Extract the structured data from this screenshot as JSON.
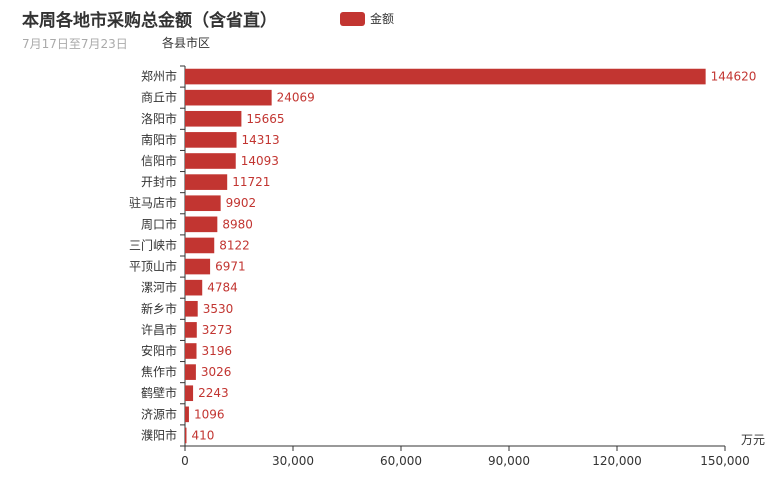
{
  "title": "本周各地市采购总金额（含省直）",
  "subtitle": "7月17日至7月23日",
  "legend": {
    "label": "金额",
    "color": "#c23531"
  },
  "chart_data": {
    "type": "bar",
    "orientation": "horizontal",
    "title": "本周各地市采购总金额（含省直）",
    "subtitle": "7月17日至7月23日",
    "ylabel": "各县市区",
    "xlabel": "万元",
    "xlim": [
      0,
      150000
    ],
    "xticks": [
      "0",
      "30,000",
      "60,000",
      "90,000",
      "120,000",
      "150,000"
    ],
    "categories": [
      "郑州市",
      "商丘市",
      "洛阳市",
      "南阳市",
      "信阳市",
      "开封市",
      "驻马店市",
      "周口市",
      "三门峡市",
      "平顶山市",
      "漯河市",
      "新乡市",
      "许昌市",
      "安阳市",
      "焦作市",
      "鹤壁市",
      "济源市",
      "濮阳市"
    ],
    "series": [
      {
        "name": "金额",
        "color": "#c23531",
        "values": [
          144620,
          24069,
          15665,
          14313,
          14093,
          11721,
          9902,
          8980,
          8122,
          6971,
          4784,
          3530,
          3273,
          3196,
          3026,
          2243,
          1096,
          410
        ]
      }
    ],
    "grid": false,
    "legend_position": "top-center"
  }
}
